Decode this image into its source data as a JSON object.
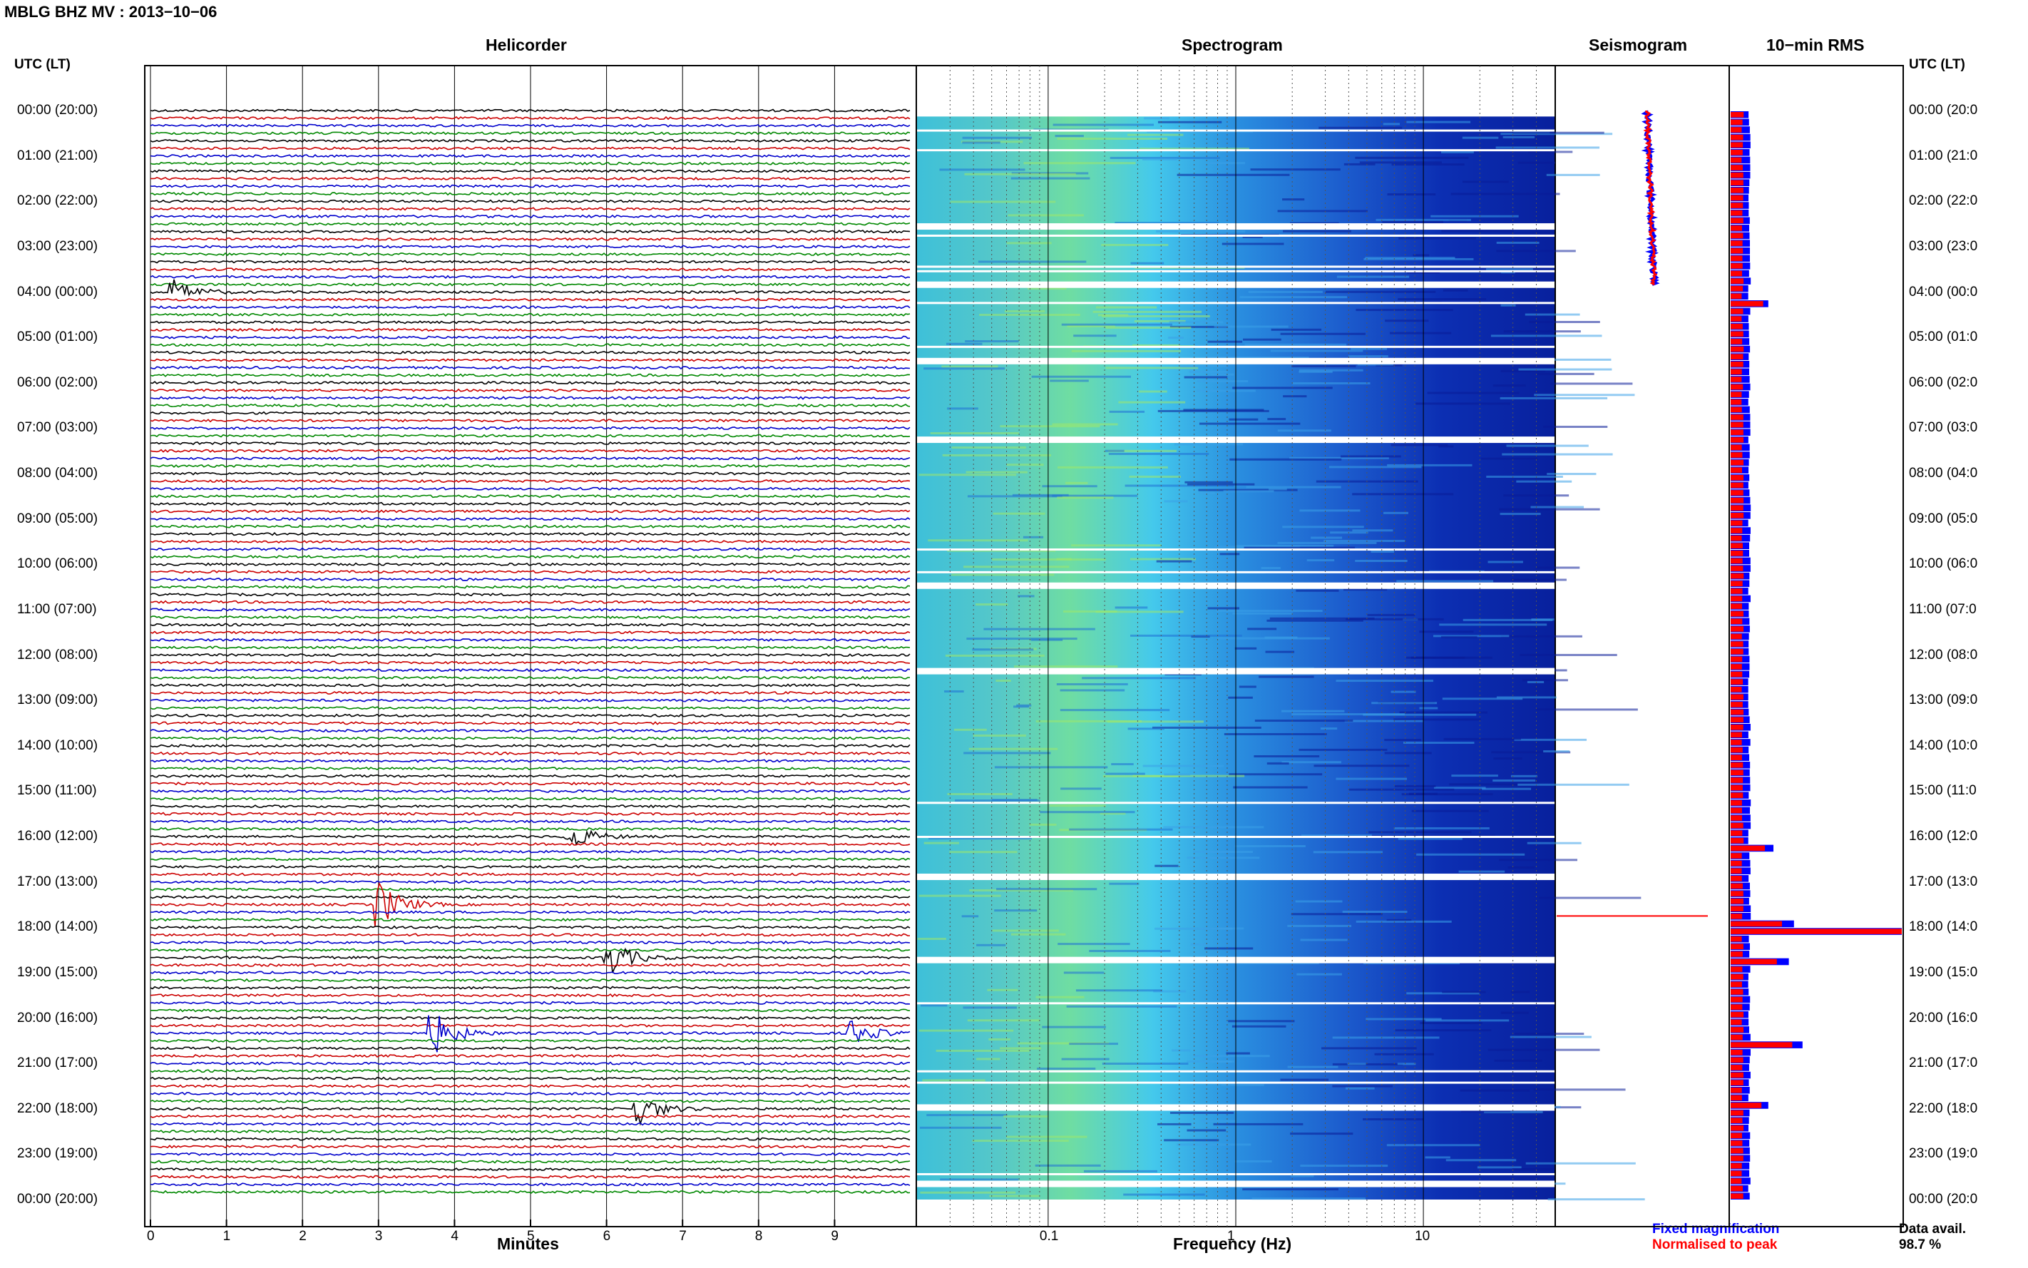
{
  "title": "MBLG BHZ MV : 2013−10−06",
  "headers": {
    "helicorder": "Helicorder",
    "spectrogram": "Spectrogram",
    "seismogram": "Seismogram",
    "rms": "10−min RMS"
  },
  "left_axis_title": "UTC (LT)",
  "right_axis_title": "UTC (LT)",
  "time_labels": [
    "00:00 (20:00)",
    "01:00 (21:00)",
    "02:00 (22:00)",
    "03:00 (23:00)",
    "04:00 (00:00)",
    "05:00 (01:00)",
    "06:00 (02:00)",
    "07:00 (03:00)",
    "08:00 (04:00)",
    "09:00 (05:00)",
    "10:00 (06:00)",
    "11:00 (07:00)",
    "12:00 (08:00)",
    "13:00 (09:00)",
    "14:00 (10:00)",
    "15:00 (11:00)",
    "16:00 (12:00)",
    "17:00 (13:00)",
    "18:00 (14:00)",
    "19:00 (15:00)",
    "20:00 (16:00)",
    "21:00 (17:00)",
    "22:00 (18:00)",
    "23:00 (19:00)",
    "00:00 (20:00)"
  ],
  "right_time_labels": [
    "00:00 (20:0",
    "01:00 (21:0",
    "02:00 (22:0",
    "03:00 (23:0",
    "04:00 (00:0",
    "05:00 (01:0",
    "06:00 (02:0",
    "07:00 (03:0",
    "08:00 (04:0",
    "09:00 (05:0",
    "10:00 (06:0",
    "11:00 (07:0",
    "12:00 (08:0",
    "13:00 (09:0",
    "14:00 (10:0",
    "15:00 (11:0",
    "16:00 (12:0",
    "17:00 (13:0",
    "18:00 (14:0",
    "19:00 (15:0",
    "20:00 (16:0",
    "21:00 (17:0",
    "22:00 (18:0",
    "23:00 (19:0",
    "00:00 (20:0"
  ],
  "minutes_ticks": [
    "0",
    "1",
    "2",
    "3",
    "4",
    "5",
    "6",
    "7",
    "8",
    "9"
  ],
  "minutes_label": "Minutes",
  "freq_ticks": [
    "0.1",
    "1",
    "10"
  ],
  "freq_label": "Frequency (Hz)",
  "legend": {
    "fixed": "Fixed magnification",
    "normalised": "Normalised to peak",
    "fixed_color": "#0000ff",
    "normalised_color": "#ff0000"
  },
  "data_avail_label": "Data avail.",
  "data_avail_value": "98.7 %",
  "colors": {
    "trace_cycle": [
      "#000000",
      "#cc0000",
      "#0000cc",
      "#008800"
    ],
    "spectrogram_low": "#0a1fa8",
    "spectrogram_mid": "#3fb9e8",
    "spectrogram_high": "#7fe08a"
  },
  "chart_data": {
    "type": "helicorder",
    "x_minutes_range": [
      0,
      10
    ],
    "freq_range_hz": [
      0.02,
      50
    ],
    "freq_scale": "log",
    "hours_utc": 24,
    "events": [
      {
        "time": "04:00",
        "minute": 0.3,
        "strength": 0.5
      },
      {
        "time": "16:00",
        "minute": 5.5,
        "strength": 0.6
      },
      {
        "time": "17:30",
        "minute": 3.0,
        "strength": 1.0
      },
      {
        "time": "18:40",
        "minute": 6.0,
        "strength": 0.9
      },
      {
        "time": "20:20",
        "minute": 3.7,
        "strength": 1.0
      },
      {
        "time": "20:15",
        "minute": 9.2,
        "strength": 0.6
      },
      {
        "time": "22:00",
        "minute": 6.4,
        "strength": 0.7
      }
    ],
    "rms_10min": {
      "series": [
        {
          "name": "Fixed magnification",
          "color": "#0000ff"
        },
        {
          "name": "Normalised to peak",
          "color": "#ff0000"
        }
      ],
      "peaks": [
        {
          "time": "04:10",
          "fixed": 0.22,
          "normalised": 0.19
        },
        {
          "time": "16:10",
          "fixed": 0.25,
          "normalised": 0.2
        },
        {
          "time": "17:50",
          "fixed": 0.37,
          "normalised": 0.3
        },
        {
          "time": "18:00",
          "fixed": 1.0,
          "normalised": 1.0
        },
        {
          "time": "18:40",
          "fixed": 0.34,
          "normalised": 0.27
        },
        {
          "time": "20:30",
          "fixed": 0.42,
          "normalised": 0.36
        },
        {
          "time": "21:50",
          "fixed": 0.22,
          "normalised": 0.18
        }
      ],
      "baseline_fixed": 0.11,
      "baseline_normalised": 0.07
    }
  }
}
